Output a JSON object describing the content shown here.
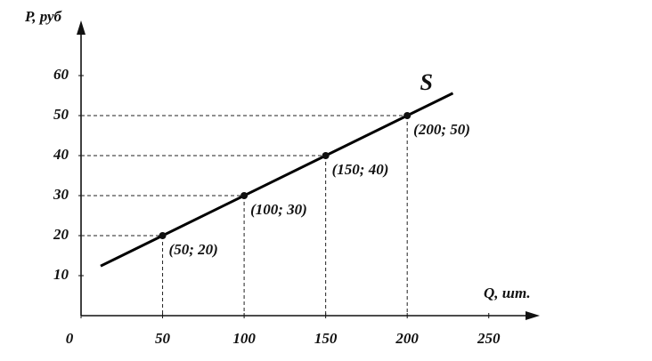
{
  "chart_data": {
    "type": "line",
    "xlabel": "Q, шт.",
    "ylabel": "P, руб",
    "xlim": [
      0,
      278
    ],
    "ylim": [
      0,
      72
    ],
    "xticks": [
      0,
      50,
      100,
      150,
      200,
      250
    ],
    "yticks": [
      10,
      20,
      30,
      40,
      50,
      60
    ],
    "series": [
      {
        "name": "S",
        "color": "#000000",
        "x": [
          12,
          228
        ],
        "values": [
          12.4,
          55.6
        ]
      }
    ],
    "points": {
      "x": [
        50,
        100,
        150,
        200
      ],
      "values": [
        20,
        30,
        40,
        50
      ],
      "value_labels": [
        "(50; 20)",
        "(100; 30)",
        "(150; 40)",
        "(200; 50)"
      ]
    },
    "guides": true
  }
}
